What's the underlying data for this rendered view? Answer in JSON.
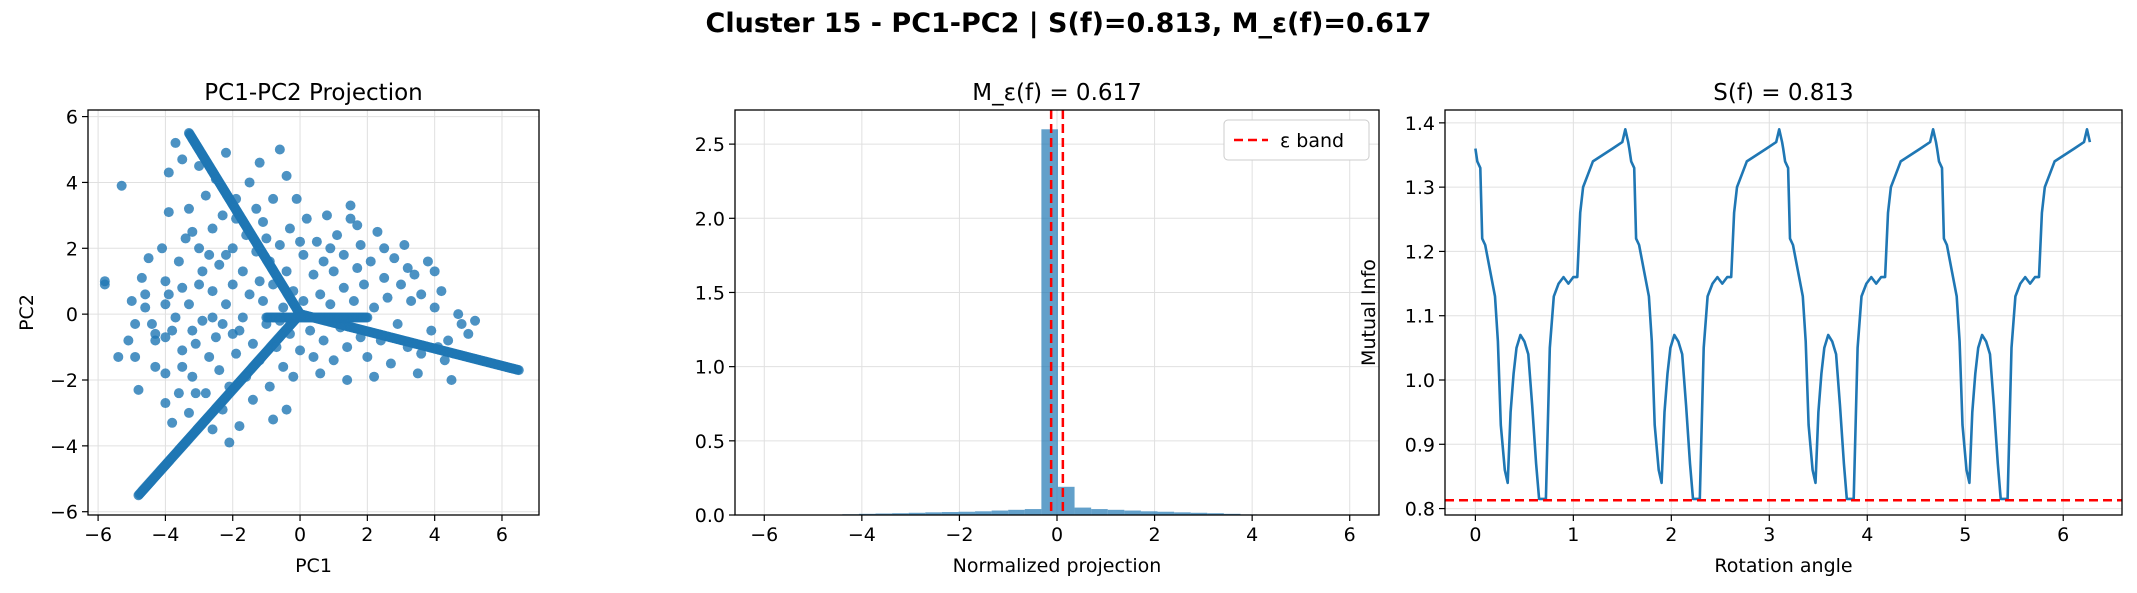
{
  "suptitle": "Cluster 15 - PC1-PC2 | S(f)=0.813, M_ε(f)=0.617",
  "colors": {
    "primary": "#1f77b4",
    "band": "#ff0000",
    "grid": "#e0e0e0"
  },
  "chart_data": [
    {
      "type": "scatter",
      "title": "PC1-PC2 Projection",
      "xlabel": "PC1",
      "ylabel": "PC2",
      "xlim": [
        -6.3,
        7.1
      ],
      "ylim": [
        -6.1,
        6.2
      ],
      "xticks": [
        -6,
        -4,
        -2,
        0,
        2,
        4,
        6
      ],
      "yticks": [
        -6,
        -4,
        -2,
        0,
        2,
        4,
        6
      ],
      "grid": true,
      "dense_lines": [
        {
          "from": [
            -4.8,
            -5.5
          ],
          "to": [
            0,
            0
          ],
          "n": 180
        },
        {
          "from": [
            -3.3,
            5.5
          ],
          "to": [
            0,
            0
          ],
          "n": 170
        },
        {
          "from": [
            0,
            0
          ],
          "to": [
            6.5,
            -1.7
          ],
          "n": 170
        },
        {
          "from": [
            -1.0,
            -0.1
          ],
          "to": [
            2.0,
            -0.1
          ],
          "n": 80
        }
      ],
      "scatter_points": [
        [
          -5.8,
          1.0
        ],
        [
          -5.8,
          0.9
        ],
        [
          -5.3,
          3.9
        ],
        [
          -5.4,
          -1.3
        ],
        [
          -5.1,
          -0.8
        ],
        [
          -4.9,
          -1.3
        ],
        [
          -4.8,
          -2.3
        ],
        [
          -4.7,
          1.1
        ],
        [
          -4.6,
          0.6
        ],
        [
          -4.6,
          0.2
        ],
        [
          -4.3,
          -0.6
        ],
        [
          -4.3,
          -0.8
        ],
        [
          -4.3,
          -1.6
        ],
        [
          -4.1,
          2.0
        ],
        [
          -4.0,
          1.0
        ],
        [
          -4.0,
          0.3
        ],
        [
          -4.0,
          -0.7
        ],
        [
          -4.0,
          -1.8
        ],
        [
          -4.0,
          -2.7
        ],
        [
          -3.9,
          3.1
        ],
        [
          -3.9,
          4.3
        ],
        [
          -3.9,
          0.6
        ],
        [
          -3.8,
          -0.5
        ],
        [
          -3.6,
          1.6
        ],
        [
          -3.5,
          0.8
        ],
        [
          -3.5,
          -1.1
        ],
        [
          -3.5,
          -1.6
        ],
        [
          -3.6,
          -2.4
        ],
        [
          -3.3,
          3.2
        ],
        [
          -3.3,
          0.3
        ],
        [
          -3.3,
          -3.0
        ],
        [
          -3.2,
          -1.9
        ],
        [
          -3.2,
          2.5
        ],
        [
          -3.1,
          -0.9
        ],
        [
          -3.0,
          4.5
        ],
        [
          -3.0,
          2.0
        ],
        [
          -2.9,
          -0.2
        ],
        [
          -2.9,
          1.3
        ],
        [
          -2.8,
          3.6
        ],
        [
          -2.8,
          -2.4
        ],
        [
          -2.7,
          -1.3
        ],
        [
          -2.6,
          0.7
        ],
        [
          -2.6,
          2.6
        ],
        [
          -2.5,
          -0.7
        ],
        [
          -2.5,
          4.1
        ],
        [
          -2.4,
          1.5
        ],
        [
          -2.4,
          -1.7
        ],
        [
          -2.3,
          -0.3
        ],
        [
          -2.3,
          3.0
        ],
        [
          -2.2,
          0.3
        ],
        [
          -2.1,
          -2.2
        ],
        [
          -2.1,
          -3.9
        ],
        [
          -2.0,
          2.0
        ],
        [
          -2.0,
          0.9
        ],
        [
          -1.9,
          -1.2
        ],
        [
          -1.9,
          3.5
        ],
        [
          -1.8,
          -0.5
        ],
        [
          -1.7,
          1.3
        ],
        [
          -1.6,
          2.4
        ],
        [
          -1.6,
          -1.9
        ],
        [
          -1.5,
          0.6
        ],
        [
          -1.5,
          4.0
        ],
        [
          -1.4,
          -0.9
        ],
        [
          -1.3,
          3.2
        ],
        [
          -1.3,
          1.9
        ],
        [
          -1.2,
          -1.4
        ],
        [
          -1.1,
          0.4
        ],
        [
          -1.1,
          2.8
        ],
        [
          -1.0,
          -0.3
        ],
        [
          -0.9,
          1.6
        ],
        [
          -0.9,
          -2.2
        ],
        [
          -0.8,
          3.5
        ],
        [
          -0.8,
          0.9
        ],
        [
          -0.7,
          -1.0
        ],
        [
          -0.6,
          2.1
        ],
        [
          -0.5,
          -1.6
        ],
        [
          -0.5,
          0.2
        ],
        [
          -0.4,
          1.3
        ],
        [
          -0.4,
          4.2
        ],
        [
          -0.3,
          -0.6
        ],
        [
          -0.3,
          2.6
        ],
        [
          -0.2,
          0.7
        ],
        [
          -0.1,
          3.5
        ],
        [
          0.0,
          -1.1
        ],
        [
          0.1,
          1.8
        ],
        [
          0.1,
          0.4
        ],
        [
          0.2,
          2.9
        ],
        [
          0.3,
          -0.5
        ],
        [
          0.4,
          1.2
        ],
        [
          0.4,
          -1.3
        ],
        [
          0.5,
          2.2
        ],
        [
          0.6,
          0.6
        ],
        [
          0.7,
          1.6
        ],
        [
          0.7,
          -0.8
        ],
        [
          0.8,
          3.0
        ],
        [
          0.9,
          0.3
        ],
        [
          1.0,
          1.3
        ],
        [
          1.0,
          -1.4
        ],
        [
          1.1,
          2.4
        ],
        [
          1.2,
          -0.4
        ],
        [
          1.3,
          0.8
        ],
        [
          1.3,
          1.8
        ],
        [
          1.4,
          -1.0
        ],
        [
          1.5,
          2.9
        ],
        [
          1.6,
          0.4
        ],
        [
          1.7,
          1.4
        ],
        [
          1.8,
          -0.7
        ],
        [
          1.8,
          2.1
        ],
        [
          1.9,
          0.9
        ],
        [
          2.0,
          -1.3
        ],
        [
          2.1,
          1.6
        ],
        [
          2.2,
          0.2
        ],
        [
          2.3,
          2.5
        ],
        [
          2.4,
          -0.8
        ],
        [
          2.5,
          1.1
        ],
        [
          2.6,
          0.5
        ],
        [
          2.7,
          -1.5
        ],
        [
          2.8,
          1.7
        ],
        [
          2.9,
          -0.3
        ],
        [
          3.0,
          0.9
        ],
        [
          3.1,
          2.1
        ],
        [
          3.2,
          -1.0
        ],
        [
          3.3,
          0.4
        ],
        [
          3.4,
          1.2
        ],
        [
          3.5,
          -1.8
        ],
        [
          3.6,
          0.6
        ],
        [
          3.8,
          1.6
        ],
        [
          3.9,
          -0.5
        ],
        [
          4.0,
          0.2
        ],
        [
          4.1,
          -1.0
        ],
        [
          4.2,
          0.7
        ],
        [
          4.3,
          -1.4
        ],
        [
          4.4,
          -0.8
        ],
        [
          4.5,
          -2.0
        ],
        [
          4.7,
          0.0
        ],
        [
          4.8,
          -0.3
        ],
        [
          5.0,
          -0.6
        ],
        [
          5.2,
          -0.2
        ],
        [
          -4.4,
          -0.3
        ],
        [
          -3.7,
          -0.1
        ],
        [
          -3.0,
          0.9
        ],
        [
          -2.6,
          -0.1
        ],
        [
          -2.2,
          1.8
        ],
        [
          -1.7,
          -0.1
        ],
        [
          -1.2,
          1.0
        ],
        [
          -0.6,
          -0.2
        ],
        [
          -1.9,
          2.9
        ],
        [
          -2.7,
          1.8
        ],
        [
          -3.4,
          2.3
        ],
        [
          -1.4,
          -2.6
        ],
        [
          -2.3,
          -2.9
        ],
        [
          -3.8,
          -3.3
        ],
        [
          -0.2,
          -1.9
        ],
        [
          0.6,
          -1.8
        ],
        [
          1.4,
          -2.0
        ],
        [
          2.2,
          -1.9
        ],
        [
          3.6,
          -1.2
        ],
        [
          -4.9,
          -0.3
        ],
        [
          -5.0,
          0.4
        ],
        [
          -4.5,
          1.7
        ],
        [
          -3.2,
          -0.5
        ],
        [
          -2.0,
          -0.6
        ],
        [
          -1.0,
          2.3
        ],
        [
          0.0,
          2.2
        ],
        [
          0.9,
          2.0
        ],
        [
          1.7,
          2.7
        ],
        [
          2.5,
          2.0
        ],
        [
          3.2,
          1.4
        ],
        [
          4.0,
          1.3
        ],
        [
          -0.6,
          5.0
        ],
        [
          -1.2,
          4.6
        ],
        [
          -2.2,
          4.9
        ],
        [
          -3.5,
          4.7
        ],
        [
          -3.7,
          5.2
        ],
        [
          1.5,
          3.3
        ],
        [
          -0.8,
          -3.2
        ],
        [
          -1.8,
          -3.4
        ],
        [
          -2.6,
          -3.5
        ],
        [
          -3.1,
          -2.4
        ],
        [
          -0.4,
          -2.9
        ]
      ]
    },
    {
      "type": "bar",
      "title": "M_ε(f) = 0.617",
      "xlabel": "Normalized projection",
      "ylabel": "",
      "xlim": [
        -6.6,
        6.6
      ],
      "ylim": [
        0,
        2.73
      ],
      "xticks": [
        -6,
        -4,
        -2,
        0,
        2,
        4,
        6
      ],
      "yticks": [
        0.0,
        0.5,
        1.0,
        1.5,
        2.0,
        2.5
      ],
      "bin_width": 0.34,
      "bins": [
        [
          -4.4,
          0.005
        ],
        [
          -4.06,
          0.008
        ],
        [
          -3.72,
          0.01
        ],
        [
          -3.38,
          0.012
        ],
        [
          -3.04,
          0.015
        ],
        [
          -2.7,
          0.018
        ],
        [
          -2.36,
          0.02
        ],
        [
          -2.02,
          0.022
        ],
        [
          -1.68,
          0.025
        ],
        [
          -1.34,
          0.03
        ],
        [
          -1.0,
          0.035
        ],
        [
          -0.66,
          0.04
        ],
        [
          -0.32,
          2.6
        ],
        [
          0.02,
          0.19
        ],
        [
          0.36,
          0.05
        ],
        [
          0.7,
          0.04
        ],
        [
          1.04,
          0.035
        ],
        [
          1.38,
          0.03
        ],
        [
          1.72,
          0.025
        ],
        [
          2.06,
          0.022
        ],
        [
          2.4,
          0.018
        ],
        [
          2.74,
          0.015
        ],
        [
          3.08,
          0.012
        ],
        [
          3.42,
          0.008
        ],
        [
          3.76,
          0.004
        ]
      ],
      "vlines": [
        -0.12,
        0.12
      ],
      "legend": {
        "label": "ε band",
        "position": "upper right"
      },
      "grid": true
    },
    {
      "type": "line",
      "title": "S(f) = 0.813",
      "xlabel": "Rotation angle",
      "ylabel": "Mutual Info",
      "xlim": [
        -0.31,
        6.6
      ],
      "ylim": [
        0.79,
        1.42
      ],
      "xticks": [
        0,
        1,
        2,
        3,
        4,
        5,
        6
      ],
      "yticks": [
        0.8,
        0.9,
        1.0,
        1.1,
        1.2,
        1.3,
        1.4
      ],
      "hline": 0.813,
      "period": 1.5708,
      "curve_keypoints": [
        [
          0.0,
          1.36
        ],
        [
          0.02,
          1.34
        ],
        [
          0.05,
          1.33
        ],
        [
          0.07,
          1.22
        ],
        [
          0.1,
          1.21
        ],
        [
          0.15,
          1.17
        ],
        [
          0.2,
          1.13
        ],
        [
          0.23,
          1.06
        ],
        [
          0.26,
          0.93
        ],
        [
          0.3,
          0.86
        ],
        [
          0.33,
          0.84
        ],
        [
          0.36,
          0.95
        ],
        [
          0.39,
          1.01
        ],
        [
          0.42,
          1.05
        ],
        [
          0.46,
          1.07
        ],
        [
          0.5,
          1.06
        ],
        [
          0.54,
          1.04
        ],
        [
          0.58,
          0.96
        ],
        [
          0.62,
          0.87
        ],
        [
          0.65,
          0.815
        ],
        [
          0.72,
          0.815
        ],
        [
          0.76,
          1.05
        ],
        [
          0.8,
          1.13
        ],
        [
          0.85,
          1.15
        ],
        [
          0.9,
          1.16
        ],
        [
          0.95,
          1.15
        ],
        [
          1.0,
          1.16
        ],
        [
          1.04,
          1.16
        ],
        [
          1.07,
          1.26
        ],
        [
          1.1,
          1.3
        ],
        [
          1.15,
          1.32
        ],
        [
          1.2,
          1.34
        ],
        [
          1.3,
          1.35
        ],
        [
          1.4,
          1.36
        ],
        [
          1.5,
          1.37
        ],
        [
          1.53,
          1.39
        ],
        [
          1.56,
          1.37
        ],
        [
          1.5708,
          1.36
        ]
      ]
    }
  ]
}
